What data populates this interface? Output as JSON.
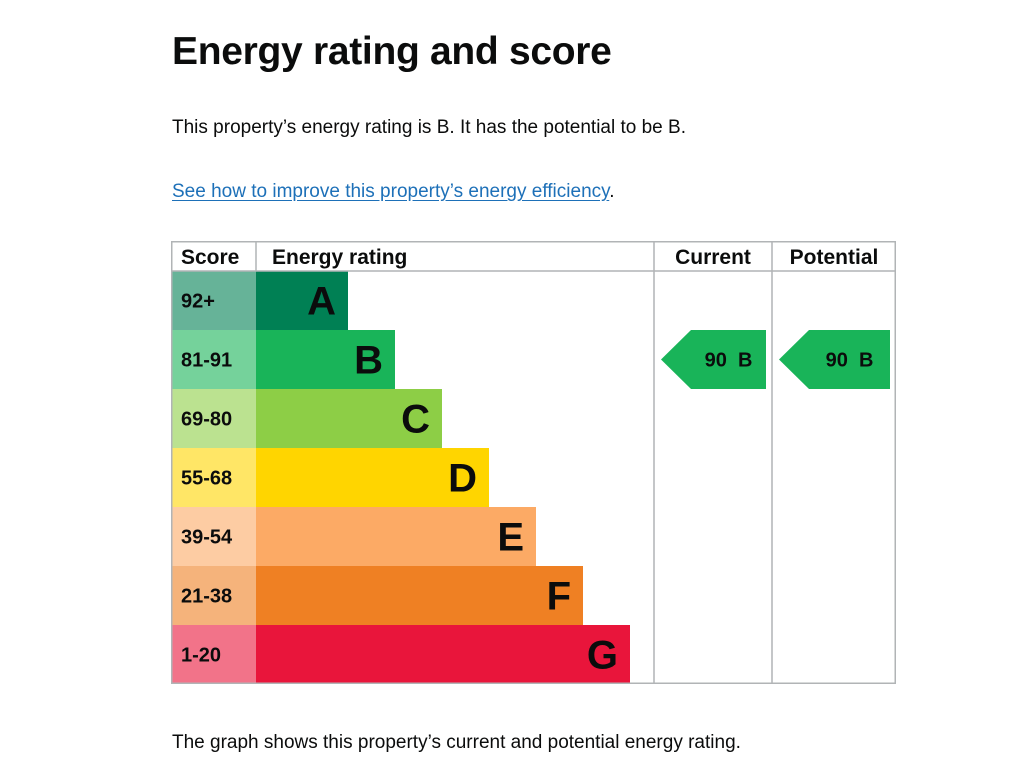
{
  "page": {
    "title": "Energy rating and score",
    "summary": "This property’s energy rating is B. It has the potential to be B.",
    "improve_link": "See how to improve this property’s energy efficiency",
    "improve_suffix": ".",
    "footnote": "The graph shows this property’s current and potential energy rating."
  },
  "chart_data": {
    "type": "bar",
    "columns": {
      "score": "Score",
      "rating": "Energy rating",
      "current": "Current",
      "potential": "Potential"
    },
    "bands": [
      {
        "score": "92+",
        "letter": "A",
        "color": "#008054",
        "score_bg": "#66b398",
        "level": 1
      },
      {
        "score": "81-91",
        "letter": "B",
        "color": "#19b459",
        "score_bg": "#75d29b",
        "level": 2
      },
      {
        "score": "69-80",
        "letter": "C",
        "color": "#8dce46",
        "score_bg": "#bbe290",
        "level": 3
      },
      {
        "score": "55-68",
        "letter": "D",
        "color": "#ffd500",
        "score_bg": "#ffe666",
        "level": 4
      },
      {
        "score": "39-54",
        "letter": "E",
        "color": "#fcaa65",
        "score_bg": "#fdcca3",
        "level": 5
      },
      {
        "score": "21-38",
        "letter": "F",
        "color": "#ef8023",
        "score_bg": "#f5b37b",
        "level": 6
      },
      {
        "score": "1-20",
        "letter": "G",
        "color": "#e9153b",
        "score_bg": "#f27389",
        "level": 7
      }
    ],
    "current": {
      "score": 90,
      "letter": "B",
      "label": "90  B",
      "color": "#19b459"
    },
    "potential": {
      "score": 90,
      "letter": "B",
      "label": "90  B",
      "color": "#19b459"
    },
    "grid_color": "#b1b4b6"
  }
}
